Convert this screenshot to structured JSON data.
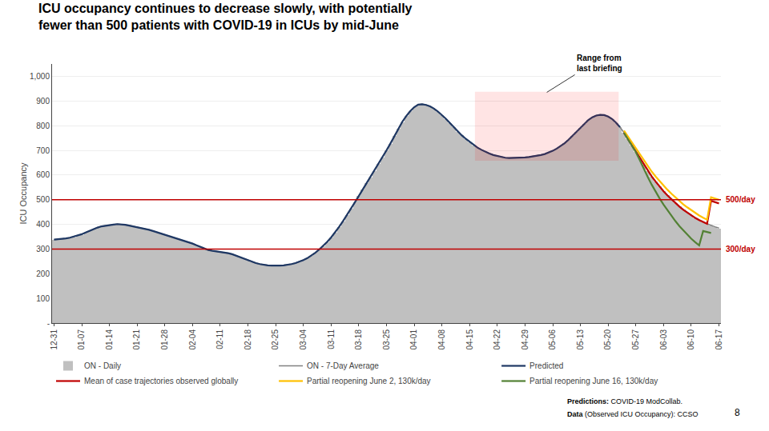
{
  "chart_data": {
    "type": "bar",
    "title": "ICU occupancy continues to decrease slowly, with potentially\nfewer than 500 patients with COVID-19 in ICUs by mid-June",
    "ylabel": "ICU Occupancy",
    "ylim": [
      0,
      1050
    ],
    "yticks": [
      {
        "value": 0,
        "label": "-"
      },
      100,
      200,
      300,
      400,
      500,
      600,
      700,
      800,
      900,
      {
        "value": 1000,
        "label": "1,000"
      }
    ],
    "grid": true,
    "legend": "bottom",
    "categories": [
      "12-31",
      null,
      null,
      null,
      null,
      null,
      null,
      "01-07",
      null,
      null,
      null,
      null,
      null,
      null,
      "01-14",
      null,
      null,
      null,
      null,
      null,
      null,
      "01-21",
      null,
      null,
      null,
      null,
      null,
      null,
      "01-28",
      null,
      null,
      null,
      null,
      null,
      null,
      "02-04",
      null,
      null,
      null,
      null,
      null,
      null,
      "02-11",
      null,
      null,
      null,
      null,
      null,
      null,
      "02-18",
      null,
      null,
      null,
      null,
      null,
      null,
      "02-25",
      null,
      null,
      null,
      null,
      null,
      null,
      "03-04",
      null,
      null,
      null,
      null,
      null,
      null,
      "03-11",
      null,
      null,
      null,
      null,
      null,
      null,
      "03-18",
      null,
      null,
      null,
      null,
      null,
      null,
      "03-25",
      null,
      null,
      null,
      null,
      null,
      null,
      "04-01",
      null,
      null,
      null,
      null,
      null,
      null,
      "04-08",
      null,
      null,
      null,
      null,
      null,
      null,
      "04-15",
      null,
      null,
      null,
      null,
      null,
      null,
      "04-22",
      null,
      null,
      null,
      null,
      null,
      null,
      "04-29",
      null,
      null,
      null,
      null,
      null,
      null,
      "05-06",
      null,
      null,
      null,
      null,
      null,
      null,
      "05-13",
      null,
      null,
      null,
      null,
      null,
      null,
      "05-20",
      null,
      null,
      null,
      null,
      null,
      null,
      "05-27",
      null,
      null,
      null,
      null,
      null,
      null,
      "06-03",
      null,
      null,
      null,
      null,
      null,
      null,
      "06-10",
      null,
      null,
      null,
      null,
      null,
      null,
      "06-17"
    ],
    "series": [
      {
        "name": "ON - Daily",
        "type": "bar",
        "color": "#C0C0C0",
        "values": [
          338,
          338,
          340,
          342,
          345,
          348,
          352,
          358,
          365,
          372,
          378,
          385,
          390,
          393,
          396,
          398,
          400,
          399,
          397,
          394,
          391,
          388,
          385,
          381,
          377,
          372,
          367,
          362,
          357,
          352,
          347,
          342,
          337,
          332,
          327,
          321,
          314,
          307,
          300,
          295,
          292,
          290,
          288,
          286,
          282,
          278,
          272,
          265,
          258,
          252,
          246,
          242,
          238,
          235,
          233,
          232,
          231,
          232,
          233,
          235,
          238,
          242,
          247,
          254,
          262,
          272,
          284,
          297,
          311,
          328,
          346,
          366,
          388,
          412,
          436,
          462,
          488,
          514,
          540,
          566,
          591,
          617,
          644,
          672,
          699,
          727,
          757,
          787,
          815,
          838,
          858,
          874,
          884,
          886,
          883,
          877,
          868,
          856,
          842,
          827,
          810,
          793,
          776,
          760,
          746,
          733,
          720,
          710,
          701,
          693,
          686,
          680,
          676,
          672,
          669,
          668,
          668,
          668,
          669,
          670,
          672,
          674,
          677,
          680,
          684,
          690,
          697,
          706,
          716,
          728,
          742,
          758,
          775,
          792,
          808,
          822,
          833,
          840,
          843,
          842,
          836,
          826,
          811,
          793,
          771,
          746,
          720,
          693,
          667,
          642,
          617,
          594,
          573,
          553,
          534,
          517,
          501,
          486,
          472,
          459,
          447,
          436,
          426,
          417,
          409,
          402,
          395,
          389,
          384
        ]
      },
      {
        "name": "ON - 7-Day Average",
        "type": "line",
        "color": "#808080",
        "values": [
          338,
          339,
          341,
          343,
          346,
          350,
          354,
          360,
          367,
          374,
          380,
          387,
          392,
          395,
          397,
          399,
          401,
          400,
          398,
          395,
          392,
          389,
          386,
          382,
          378,
          373,
          368,
          363,
          358,
          353,
          348,
          343,
          338,
          333,
          328,
          322,
          315,
          308,
          301,
          296,
          293,
          291,
          289,
          287,
          283,
          279,
          273,
          266,
          259,
          253,
          247,
          243,
          239,
          236,
          234,
          233,
          232,
          233,
          234,
          236,
          239,
          243,
          248,
          255,
          263,
          273,
          285,
          298,
          312,
          329,
          347,
          367,
          389,
          413,
          437,
          463,
          489,
          515,
          541,
          567,
          592,
          618,
          645,
          673,
          700,
          728,
          758,
          788,
          816,
          839,
          859,
          875,
          885,
          887,
          884,
          878,
          869,
          857,
          843,
          828,
          811,
          794,
          777,
          761,
          747,
          734,
          721,
          711,
          702,
          694,
          687,
          681,
          677,
          673,
          670,
          669,
          669,
          669,
          670,
          671,
          673,
          675,
          678,
          681,
          685,
          691,
          698,
          707,
          717,
          729,
          743,
          759,
          776,
          793,
          809,
          823,
          834,
          841,
          844,
          843,
          837,
          827,
          812,
          794,
          772,
          747,
          721,
          694,
          668,
          643,
          618,
          595,
          574,
          554,
          535,
          518,
          502,
          487,
          473,
          460,
          448,
          437,
          427,
          418,
          410,
          403,
          396,
          390,
          385
        ]
      },
      {
        "name": "Predicted",
        "type": "line",
        "color": "#1F3864",
        "values": [
          338,
          339,
          341,
          343,
          346,
          350,
          354,
          360,
          367,
          374,
          380,
          387,
          392,
          395,
          397,
          399,
          401,
          400,
          398,
          395,
          392,
          389,
          386,
          382,
          378,
          373,
          368,
          363,
          358,
          353,
          348,
          343,
          338,
          333,
          328,
          322,
          315,
          308,
          301,
          296,
          293,
          291,
          289,
          287,
          283,
          279,
          273,
          266,
          259,
          253,
          247,
          243,
          239,
          236,
          234,
          233,
          232,
          233,
          234,
          236,
          239,
          243,
          248,
          255,
          263,
          273,
          285,
          298,
          312,
          329,
          347,
          367,
          389,
          413,
          437,
          463,
          489,
          515,
          541,
          567,
          592,
          618,
          645,
          673,
          700,
          728,
          758,
          788,
          816,
          839,
          859,
          875,
          885,
          887,
          884,
          878,
          869,
          857,
          843,
          828,
          811,
          794,
          777,
          761,
          747,
          734,
          721,
          711,
          702,
          694,
          687,
          681,
          677,
          673,
          670,
          669,
          669,
          669,
          670,
          671,
          673,
          675,
          678,
          681,
          685,
          691,
          698,
          707,
          717,
          729,
          743,
          759,
          776,
          793,
          809,
          823,
          834,
          841,
          844,
          843,
          837,
          827,
          812,
          794,
          null,
          null,
          null,
          null,
          null,
          null,
          null,
          null,
          null,
          null,
          null,
          null,
          null,
          null,
          null,
          null,
          null,
          null,
          null,
          null,
          null,
          null,
          null,
          null,
          null
        ]
      },
      {
        "name": "Mean of case trajectories observed globally",
        "type": "line",
        "color": "#C00000",
        "values": [
          null,
          null,
          null,
          null,
          null,
          null,
          null,
          null,
          null,
          null,
          null,
          null,
          null,
          null,
          null,
          null,
          null,
          null,
          null,
          null,
          null,
          null,
          null,
          null,
          null,
          null,
          null,
          null,
          null,
          null,
          null,
          null,
          null,
          null,
          null,
          null,
          null,
          null,
          null,
          null,
          null,
          null,
          null,
          null,
          null,
          null,
          null,
          null,
          null,
          null,
          null,
          null,
          null,
          null,
          null,
          null,
          null,
          null,
          null,
          null,
          null,
          null,
          null,
          null,
          null,
          null,
          null,
          null,
          null,
          null,
          null,
          null,
          null,
          null,
          null,
          null,
          null,
          null,
          null,
          null,
          null,
          null,
          null,
          null,
          null,
          null,
          null,
          null,
          null,
          null,
          null,
          null,
          null,
          null,
          null,
          null,
          null,
          null,
          null,
          null,
          null,
          null,
          null,
          null,
          null,
          null,
          null,
          null,
          null,
          null,
          null,
          null,
          null,
          null,
          null,
          null,
          null,
          null,
          null,
          null,
          null,
          null,
          null,
          null,
          null,
          null,
          null,
          null,
          null,
          null,
          null,
          null,
          null,
          null,
          null,
          null,
          null,
          null,
          null,
          null,
          null,
          null,
          null,
          null,
          771,
          746,
          720,
          693,
          667,
          642,
          617,
          594,
          573,
          553,
          534,
          517,
          501,
          486,
          472,
          459,
          447,
          436,
          426,
          417,
          409,
          402,
          495,
          489,
          485
        ]
      },
      {
        "name": "Partial reopening June 2, 130k/day",
        "type": "line",
        "color": "#FFC000",
        "values": [
          null,
          null,
          null,
          null,
          null,
          null,
          null,
          null,
          null,
          null,
          null,
          null,
          null,
          null,
          null,
          null,
          null,
          null,
          null,
          null,
          null,
          null,
          null,
          null,
          null,
          null,
          null,
          null,
          null,
          null,
          null,
          null,
          null,
          null,
          null,
          null,
          null,
          null,
          null,
          null,
          null,
          null,
          null,
          null,
          null,
          null,
          null,
          null,
          null,
          null,
          null,
          null,
          null,
          null,
          null,
          null,
          null,
          null,
          null,
          null,
          null,
          null,
          null,
          null,
          null,
          null,
          null,
          null,
          null,
          null,
          null,
          null,
          null,
          null,
          null,
          null,
          null,
          null,
          null,
          null,
          null,
          null,
          null,
          null,
          null,
          null,
          null,
          null,
          null,
          null,
          null,
          null,
          null,
          null,
          null,
          null,
          null,
          null,
          null,
          null,
          null,
          null,
          null,
          null,
          null,
          null,
          null,
          null,
          null,
          null,
          null,
          null,
          null,
          null,
          null,
          null,
          null,
          null,
          null,
          null,
          null,
          null,
          null,
          null,
          null,
          null,
          null,
          null,
          null,
          null,
          null,
          null,
          null,
          null,
          null,
          null,
          null,
          null,
          null,
          null,
          null,
          null,
          null,
          null,
          780,
          756,
          731,
          706,
          682,
          658,
          635,
          614,
          594,
          575,
          557,
          540,
          524,
          509,
          495,
          481,
          469,
          457,
          446,
          436,
          427,
          419,
          510,
          504,
          500
        ]
      },
      {
        "name": "Partial reopening June 16, 130k/day",
        "type": "line",
        "color": "#538135",
        "values": [
          null,
          null,
          null,
          null,
          null,
          null,
          null,
          null,
          null,
          null,
          null,
          null,
          null,
          null,
          null,
          null,
          null,
          null,
          null,
          null,
          null,
          null,
          null,
          null,
          null,
          null,
          null,
          null,
          null,
          null,
          null,
          null,
          null,
          null,
          null,
          null,
          null,
          null,
          null,
          null,
          null,
          null,
          null,
          null,
          null,
          null,
          null,
          null,
          null,
          null,
          null,
          null,
          null,
          null,
          null,
          null,
          null,
          null,
          null,
          null,
          null,
          null,
          null,
          null,
          null,
          null,
          null,
          null,
          null,
          null,
          null,
          null,
          null,
          null,
          null,
          null,
          null,
          null,
          null,
          null,
          null,
          null,
          null,
          null,
          null,
          null,
          null,
          null,
          null,
          null,
          null,
          null,
          null,
          null,
          null,
          null,
          null,
          null,
          null,
          null,
          null,
          null,
          null,
          null,
          null,
          null,
          null,
          null,
          null,
          null,
          null,
          null,
          null,
          null,
          null,
          null,
          null,
          null,
          null,
          null,
          null,
          null,
          null,
          null,
          null,
          null,
          null,
          null,
          null,
          null,
          null,
          null,
          null,
          null,
          null,
          null,
          null,
          null,
          null,
          null,
          null,
          null,
          null,
          null,
          771,
          746,
          720,
          693,
          660,
          625,
          592,
          561,
          532,
          505,
          480,
          457,
          434,
          413,
          393,
          375,
          358,
          342,
          328,
          315,
          373,
          368,
          365,
          null,
          null
        ]
      }
    ],
    "reference_lines": [
      {
        "value": 500,
        "label": "500/day",
        "color": "#C00000"
      },
      {
        "value": 300,
        "label": "300/day",
        "color": "#C00000"
      }
    ],
    "range_box": {
      "x_start": 107,
      "x_end": 142,
      "y_min": 660,
      "y_max": 935,
      "color": "#FF0000",
      "label": "Range from\nlast briefing"
    },
    "footnotes": [
      {
        "bold": "Predictions:",
        "text": " COVID-19 ModCollab."
      },
      {
        "bold": "Data",
        "text": " (Observed ICU Occupancy): CCSO"
      }
    ],
    "page_number": "8"
  }
}
